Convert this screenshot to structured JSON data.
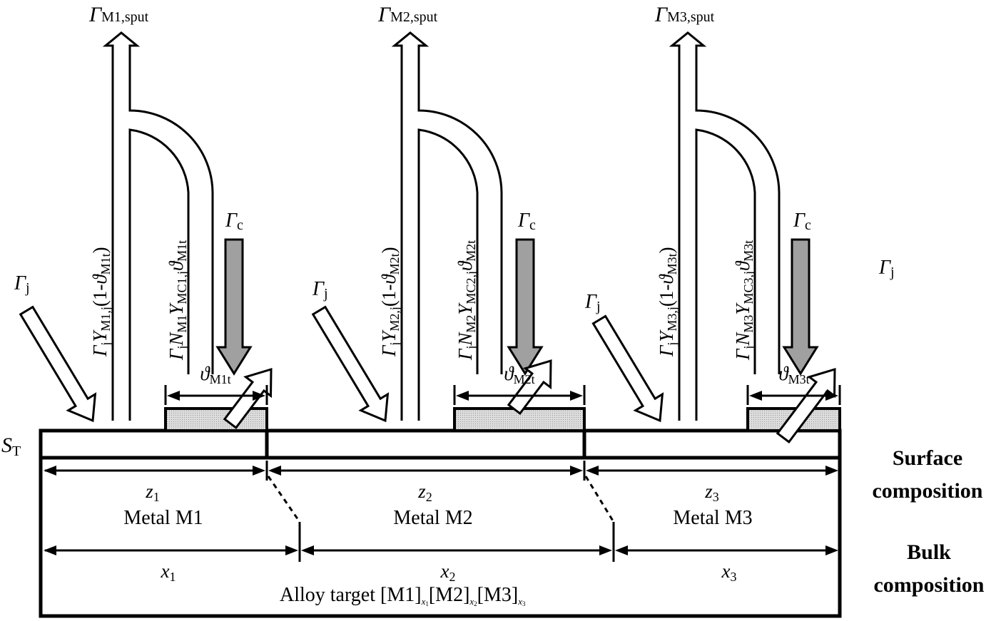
{
  "symbols": {
    "gamma": "Γ",
    "theta": "ϑ",
    "y": "Y",
    "n": "N",
    "open_paren": "(1-",
    "close_paren": ")",
    "sub_j": "j",
    "sub_c": "c"
  },
  "sputter_labels": [
    {
      "sub": "M1,sput"
    },
    {
      "sub": "M2,sput"
    },
    {
      "sub": "M3,sput"
    }
  ],
  "direct_flux_labels": [
    {
      "y_sub": "M1,j",
      "theta_sub": "M1t"
    },
    {
      "y_sub": "M2,j",
      "theta_sub": "M2t"
    },
    {
      "y_sub": "M3,j",
      "theta_sub": "M3t"
    }
  ],
  "compound_flux_labels": [
    {
      "n_sub": "M1",
      "y_sub": "MC1,j",
      "theta_sub": "M1t"
    },
    {
      "n_sub": "M2",
      "y_sub": "MC2,j",
      "theta_sub": "M2t"
    },
    {
      "n_sub": "M3",
      "y_sub": "MC3,j",
      "theta_sub": "M3t"
    }
  ],
  "coverage_labels": [
    {
      "sub": "M1t"
    },
    {
      "sub": "M2t"
    },
    {
      "sub": "M3t"
    }
  ],
  "surface_fractions": [
    {
      "symbol": "z",
      "sub": "1"
    },
    {
      "symbol": "z",
      "sub": "2"
    },
    {
      "symbol": "z",
      "sub": "3"
    }
  ],
  "metals": [
    "Metal M1",
    "Metal M2",
    "Metal M3"
  ],
  "bulk_fractions": [
    {
      "symbol": "x",
      "sub": "1"
    },
    {
      "symbol": "x",
      "sub": "2"
    },
    {
      "symbol": "x",
      "sub": "3"
    }
  ],
  "target_label": "S",
  "target_sub": "T",
  "alloy": {
    "prefix": "Alloy target ",
    "m1": "[M1]",
    "m1_sub": "x",
    "m1_sub2": "1",
    "m2": "[M2]",
    "m2_sub": "x",
    "m2_sub2": "2",
    "m3": "[M3]",
    "m3_sub": "x",
    "m3_sub2": "3"
  },
  "side_labels": {
    "surface_1": "Surface",
    "surface_2": "composition",
    "bulk_1": "Bulk",
    "bulk_2": "composition"
  },
  "colors": {
    "stroke": "#000000",
    "compound_arrow": "#a0a0a0",
    "compound_layer": "#d4d4d4",
    "background": "#ffffff"
  }
}
